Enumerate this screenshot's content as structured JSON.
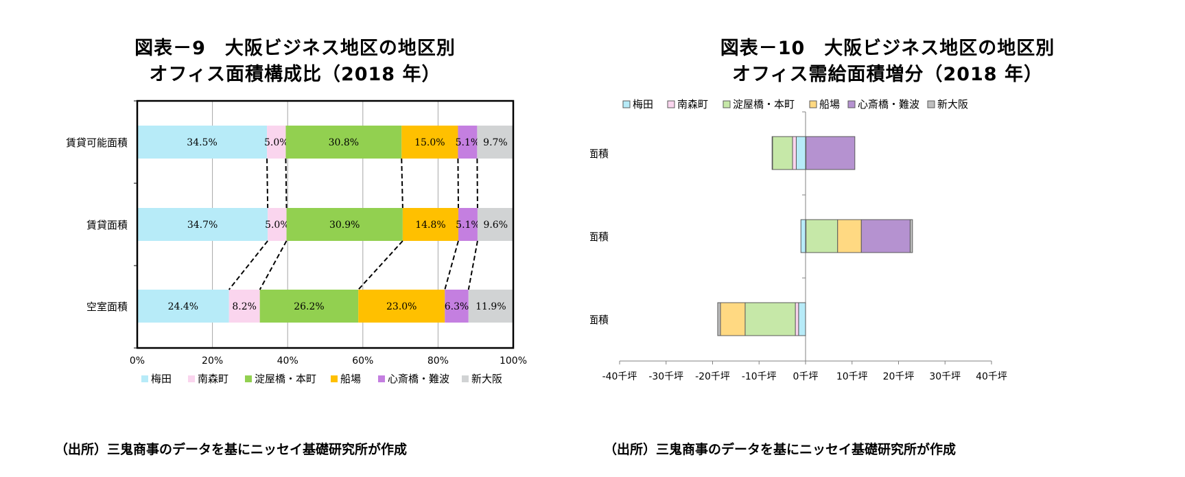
{
  "chart_data": [
    {
      "type": "bar",
      "stacked": true,
      "orientation": "horizontal",
      "percent": true,
      "title": [
        "図表－9　大阪ビジネス地区の地区別",
        "オフィス面積構成比（2018 年）"
      ],
      "categories": [
        "賃貸可能面積",
        "賃貸面積",
        "空室面積"
      ],
      "series": [
        {
          "name": "梅田",
          "values": [
            34.5,
            34.7,
            24.4
          ],
          "labels": [
            "34.5%",
            "34.7%",
            "24.4%"
          ],
          "color": "#b7ebf8"
        },
        {
          "name": "南森町",
          "values": [
            5.0,
            5.0,
            8.2
          ],
          "labels": [
            "5.0%",
            "5.0%",
            "8.2%"
          ],
          "color": "#fad5ee"
        },
        {
          "name": "淀屋橋・本町",
          "values": [
            30.8,
            30.9,
            26.2
          ],
          "labels": [
            "30.8%",
            "30.9%",
            "26.2%"
          ],
          "color": "#92d050"
        },
        {
          "name": "船場",
          "values": [
            15.0,
            14.8,
            23.0
          ],
          "labels": [
            "15.0%",
            "14.8%",
            "23.0%"
          ],
          "color": "#ffc000"
        },
        {
          "name": "心斎橋・難波",
          "values": [
            5.1,
            5.1,
            6.3
          ],
          "labels": [
            "5.1%",
            "5.1%",
            "6.3%"
          ],
          "color": "#c47fe0"
        },
        {
          "name": "新大阪",
          "values": [
            9.7,
            9.6,
            11.9
          ],
          "labels": [
            "9.7%",
            "9.6%",
            "11.9%"
          ],
          "color": "#d1d3d4"
        }
      ],
      "xlim": [
        0,
        100
      ],
      "xticks": [
        "0%",
        "20%",
        "40%",
        "60%",
        "80%",
        "100%"
      ],
      "legend": "bottom",
      "connector_lines": "dashed",
      "source": "（出所）三鬼商事のデータを基にニッセイ基礎研究所が作成"
    },
    {
      "type": "bar",
      "stacked": true,
      "orientation": "horizontal",
      "title": [
        "図表－10　大阪ビジネス地区の地区別",
        "オフィス需給面積増分（2018 年）"
      ],
      "categories": [
        "賃貸可能面積",
        "賃貸面積",
        "空室面積"
      ],
      "series": [
        {
          "name": "梅田",
          "values": [
            -2.0,
            -1.0,
            -1.5
          ],
          "color": "#b7ebf8"
        },
        {
          "name": "南森町",
          "values": [
            -0.8,
            0.1,
            -0.7
          ],
          "color": "#fad5ee"
        },
        {
          "name": "淀屋橋・本町",
          "values": [
            -4.3,
            6.8,
            -10.8
          ],
          "color": "#c6e8a8"
        },
        {
          "name": "船場",
          "values": [
            0.1,
            5.1,
            -5.3
          ],
          "color": "#ffd982"
        },
        {
          "name": "心斎橋・難波",
          "values": [
            10.5,
            10.5,
            0.0
          ],
          "color": "#b592d0"
        },
        {
          "name": "新大阪",
          "values": [
            -0.1,
            0.5,
            -0.6
          ],
          "color": "#bfbfbf"
        }
      ],
      "xlim": [
        -40,
        40
      ],
      "xticks": [
        "-40千坪",
        "-30千坪",
        "-20千坪",
        "-10千坪",
        "0千坪",
        "10千坪",
        "20千坪",
        "30千坪",
        "40千坪"
      ],
      "legend": "top",
      "source": "（出所）三鬼商事のデータを基にニッセイ基礎研究所が作成"
    }
  ]
}
